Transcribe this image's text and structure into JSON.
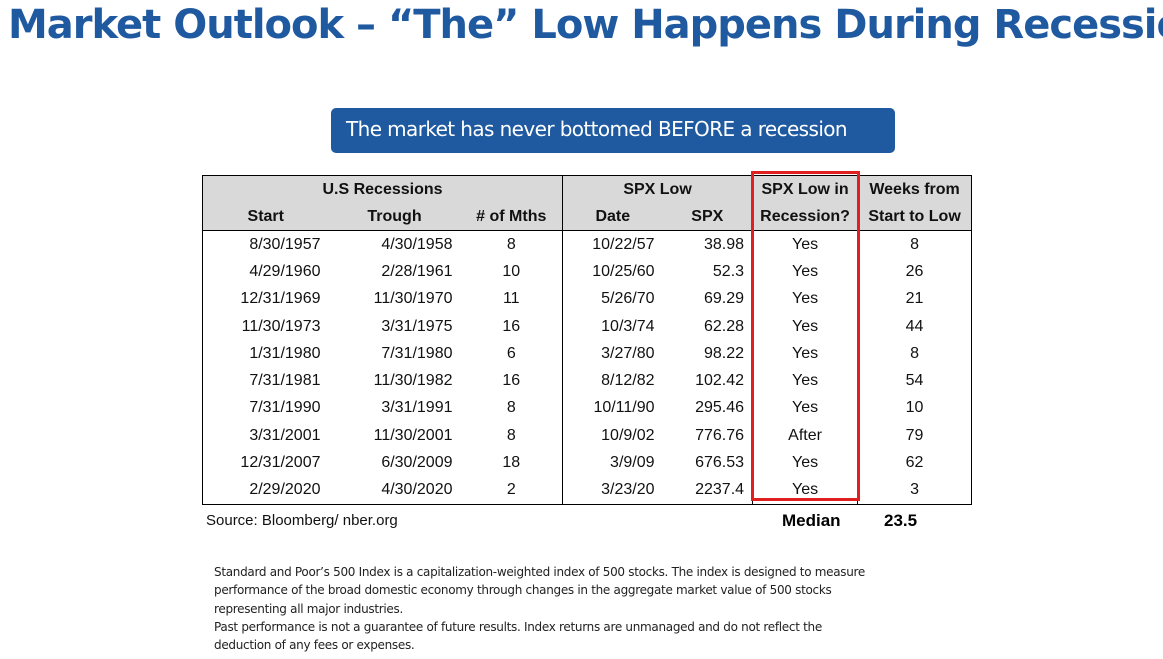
{
  "title": "Market Outlook – “The” Low Happens During Recession",
  "callout": "The market has never bottomed BEFORE a recession",
  "table": {
    "group_headers": {
      "recessions": "U.S Recessions",
      "spx_low": "SPX Low",
      "in_recession_line1": "SPX Low in",
      "weeks_line1": "Weeks from"
    },
    "sub_headers": {
      "start": "Start",
      "trough": "Trough",
      "months": "# of Mths",
      "date": "Date",
      "spx": "SPX",
      "in_recession_line2": "Recession?",
      "weeks_line2": "Start to Low"
    },
    "rows": [
      {
        "start": "8/30/1957",
        "trough": "4/30/1958",
        "months": "8",
        "date": "10/22/57",
        "spx": "38.98",
        "in_recession": "Yes",
        "weeks": "8"
      },
      {
        "start": "4/29/1960",
        "trough": "2/28/1961",
        "months": "10",
        "date": "10/25/60",
        "spx": "52.3",
        "in_recession": "Yes",
        "weeks": "26"
      },
      {
        "start": "12/31/1969",
        "trough": "11/30/1970",
        "months": "11",
        "date": "5/26/70",
        "spx": "69.29",
        "in_recession": "Yes",
        "weeks": "21"
      },
      {
        "start": "11/30/1973",
        "trough": "3/31/1975",
        "months": "16",
        "date": "10/3/74",
        "spx": "62.28",
        "in_recession": "Yes",
        "weeks": "44"
      },
      {
        "start": "1/31/1980",
        "trough": "7/31/1980",
        "months": "6",
        "date": "3/27/80",
        "spx": "98.22",
        "in_recession": "Yes",
        "weeks": "8"
      },
      {
        "start": "7/31/1981",
        "trough": "11/30/1982",
        "months": "16",
        "date": "8/12/82",
        "spx": "102.42",
        "in_recession": "Yes",
        "weeks": "54"
      },
      {
        "start": "7/31/1990",
        "trough": "3/31/1991",
        "months": "8",
        "date": "10/11/90",
        "spx": "295.46",
        "in_recession": "Yes",
        "weeks": "10"
      },
      {
        "start": "3/31/2001",
        "trough": "11/30/2001",
        "months": "8",
        "date": "10/9/02",
        "spx": "776.76",
        "in_recession": "After",
        "weeks": "79"
      },
      {
        "start": "12/31/2007",
        "trough": "6/30/2009",
        "months": "18",
        "date": "3/9/09",
        "spx": "676.53",
        "in_recession": "Yes",
        "weeks": "62"
      },
      {
        "start": "2/29/2020",
        "trough": "4/30/2020",
        "months": "2",
        "date": "3/23/20",
        "spx": "2237.4",
        "in_recession": "Yes",
        "weeks": "3"
      }
    ],
    "source": "Source: Bloomberg/ nber.org",
    "median_label": "Median",
    "median_value": "23.5",
    "highlight_color": "#e02020",
    "header_fill": "#d9d9d9"
  },
  "disclaimer": {
    "line1": "Standard and Poor’s 500 Index is a capitalization-weighted index of 500 stocks. The index is designed to measure",
    "line2": "performance of the broad domestic economy through changes in the aggregate market value of 500 stocks",
    "line3": "representing all major industries.",
    "line4": "Past performance is not a guarantee of future results. Index returns are unmanaged and do not reflect the",
    "line5": "deduction of any fees or expenses."
  },
  "colors": {
    "brand_blue": "#1f5aa0"
  }
}
